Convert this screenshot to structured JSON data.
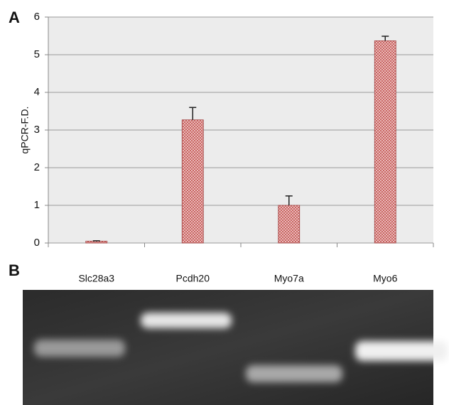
{
  "chart_data": {
    "type": "bar",
    "panel_label": "A",
    "ylabel": "qPCR-F.D.",
    "categories": [
      "Slc28a3",
      "Pcdh20",
      "Myo7a",
      "Myo6"
    ],
    "values": [
      0.05,
      3.27,
      1.0,
      5.37
    ],
    "errors": [
      0.01,
      0.33,
      0.25,
      0.12
    ],
    "color": "#e8a0a0",
    "ylim": [
      0,
      6
    ],
    "yticks": [
      0,
      1,
      2,
      3,
      4,
      5,
      6
    ],
    "grid": true
  },
  "gel": {
    "panel_label": "B",
    "lanes": [
      "Slc28a3",
      "Pcdh20",
      "Myo7a",
      "Myo6"
    ]
  }
}
